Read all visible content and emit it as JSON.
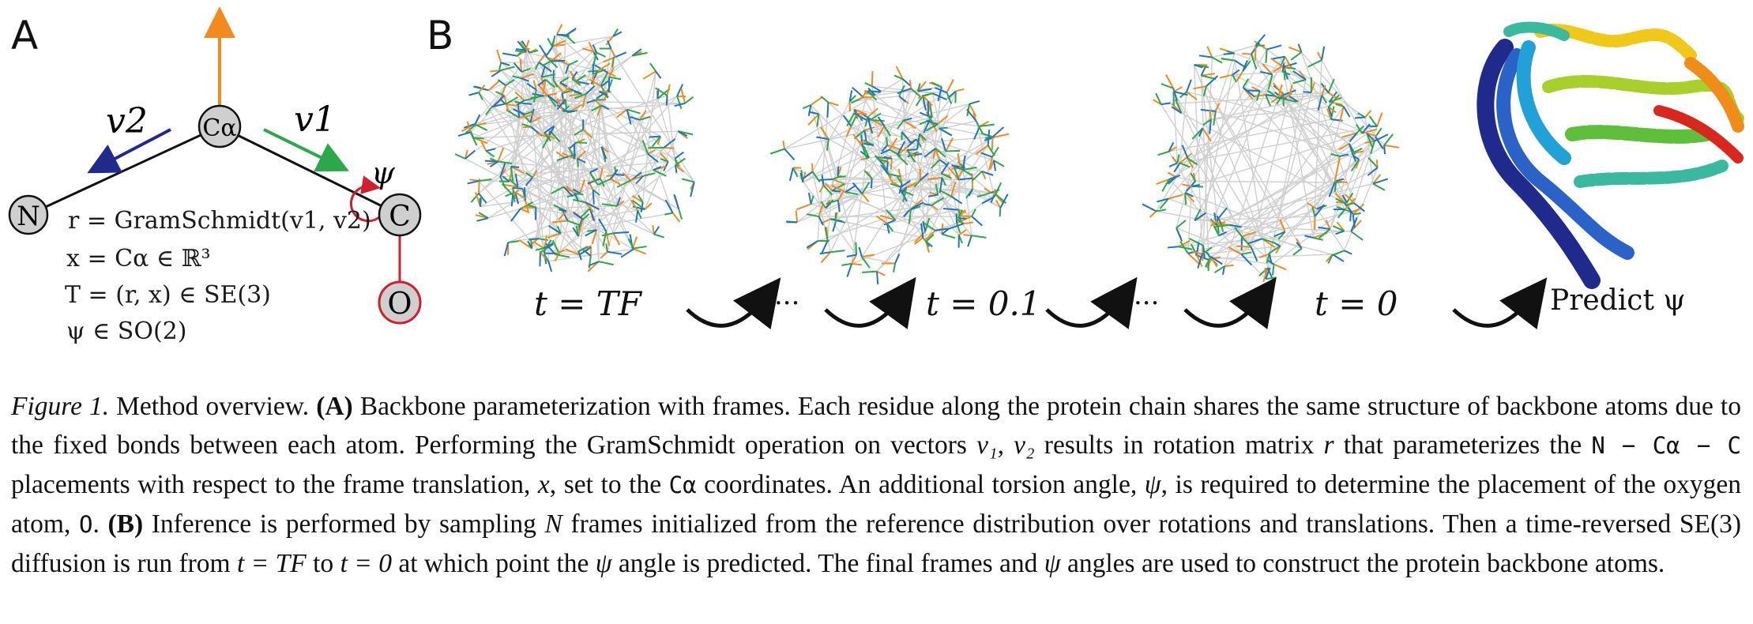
{
  "panel_a": {
    "letter": "A",
    "atom_n": "N",
    "atom_ca": "Cα",
    "atom_c": "C",
    "atom_o": "O",
    "label_v1": "v1",
    "label_v2": "v2",
    "label_psi": "ψ",
    "eq_r": "r = GramSchmidt(v1, v2)",
    "eq_x": "x = Cα ∈ ℝ³",
    "eq_T": "T = (r, x) ∈ SE(3)",
    "eq_psi": "ψ ∈ SO(2)",
    "colors": {
      "up_arrow": "#f28a1e",
      "v1_arrow": "#2aa84a",
      "v2_arrow": "#1f2a8c",
      "oxygen_bond": "#d0202e",
      "atom_fill": "#cfcfcf"
    }
  },
  "panel_b": {
    "letter": "B",
    "label_tf": "t = TF",
    "label_t01": "t = 0.1",
    "label_t0": "t = 0",
    "label_predict": "Predict ψ",
    "ellipsis": "···",
    "frame_colors": [
      "#f28a1e",
      "#2aa84a",
      "#1f73c4"
    ],
    "ribbon_colors": [
      "#1f2a8c",
      "#2a62c8",
      "#22a0d8",
      "#3bb8a0",
      "#5fbf3c",
      "#a9cf2c",
      "#f0c81a",
      "#f08c1a",
      "#d8281e"
    ]
  },
  "caption": {
    "fig_label": "Figure 1.",
    "text_1": " Method overview. ",
    "bold_a": "(A)",
    "text_2": " Backbone parameterization with frames. Each residue along the protein chain shares the same structure of backbone atoms due to the fixed bonds between each atom. Performing the GramSchmidt operation on vectors ",
    "vec_math": "v₁, v₂",
    "text_3": " results in rotation matrix ",
    "r_math": "r",
    "text_4": " that parameterizes the ",
    "nca_c": "N − Cα − C",
    "text_5": " placements with respect to the frame translation, ",
    "x_math": "x",
    "text_6": ", set to the ",
    "ca_mono": "Cα",
    "text_7": " coordinates. An additional torsion angle, ",
    "psi_1": "ψ",
    "text_8": ", is required to determine the placement of the oxygen atom, ",
    "o_mono": "O",
    "text_9": ". ",
    "bold_b": "(B)",
    "text_10": " Inference is performed by sampling ",
    "n_math": "N",
    "text_11": " frames initialized from the reference distribution over rotations and translations. Then a time-reversed ",
    "se3": "SE(3)",
    "text_12": " diffusion is run from ",
    "t_tf": "t = TF",
    "text_13": " to ",
    "t_0": "t = 0",
    "text_14": " at which point the ",
    "psi_2": "ψ",
    "text_15": " angle is predicted. The final frames and ",
    "psi_3": "ψ",
    "text_16": " angles are used to construct the protein backbone atoms."
  }
}
